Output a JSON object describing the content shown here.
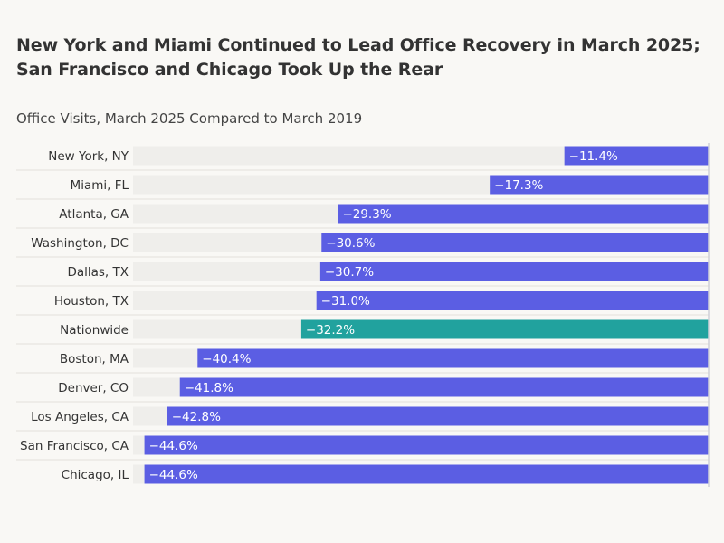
{
  "title": "New York and Miami Continued to Lead Office Recovery in March 2025; San Francisco and Chicago Took Up the Rear",
  "subtitle": "Office Visits, March 2025 Compared to March 2019",
  "colors": {
    "bar": "#5b5ee3",
    "highlight": "#21a29e",
    "track": "#efeeeb",
    "divider": "#e2e1dc",
    "axis": "#cfd0d8",
    "background": "#f9f8f5"
  },
  "chart_data": {
    "type": "bar",
    "orientation": "horizontal",
    "title": "New York and Miami Continued to Lead Office Recovery in March 2025; San Francisco and Chicago Took Up the Rear",
    "subtitle": "Office Visits, March 2025 Compared to March 2019",
    "xlabel": "",
    "ylabel": "",
    "xlim": [
      -45.5,
      0
    ],
    "grid": false,
    "legend": "none",
    "highlight_category": "Nationwide",
    "categories": [
      "New York, NY",
      "Miami, FL",
      "Atlanta, GA",
      "Washington, DC",
      "Dallas, TX",
      "Houston, TX",
      "Nationwide",
      "Boston, MA",
      "Denver, CO",
      "Los Angeles, CA",
      "San Francisco, CA",
      "Chicago, IL"
    ],
    "values": [
      -11.4,
      -17.3,
      -29.3,
      -30.6,
      -30.7,
      -31.0,
      -32.2,
      -40.4,
      -41.8,
      -42.8,
      -44.6,
      -44.6
    ],
    "value_labels": [
      "−11.4%",
      "−17.3%",
      "−29.3%",
      "−30.6%",
      "−30.7%",
      "−31.0%",
      "−32.2%",
      "−40.4%",
      "−41.8%",
      "−42.8%",
      "−44.6%",
      "−44.6%"
    ]
  }
}
